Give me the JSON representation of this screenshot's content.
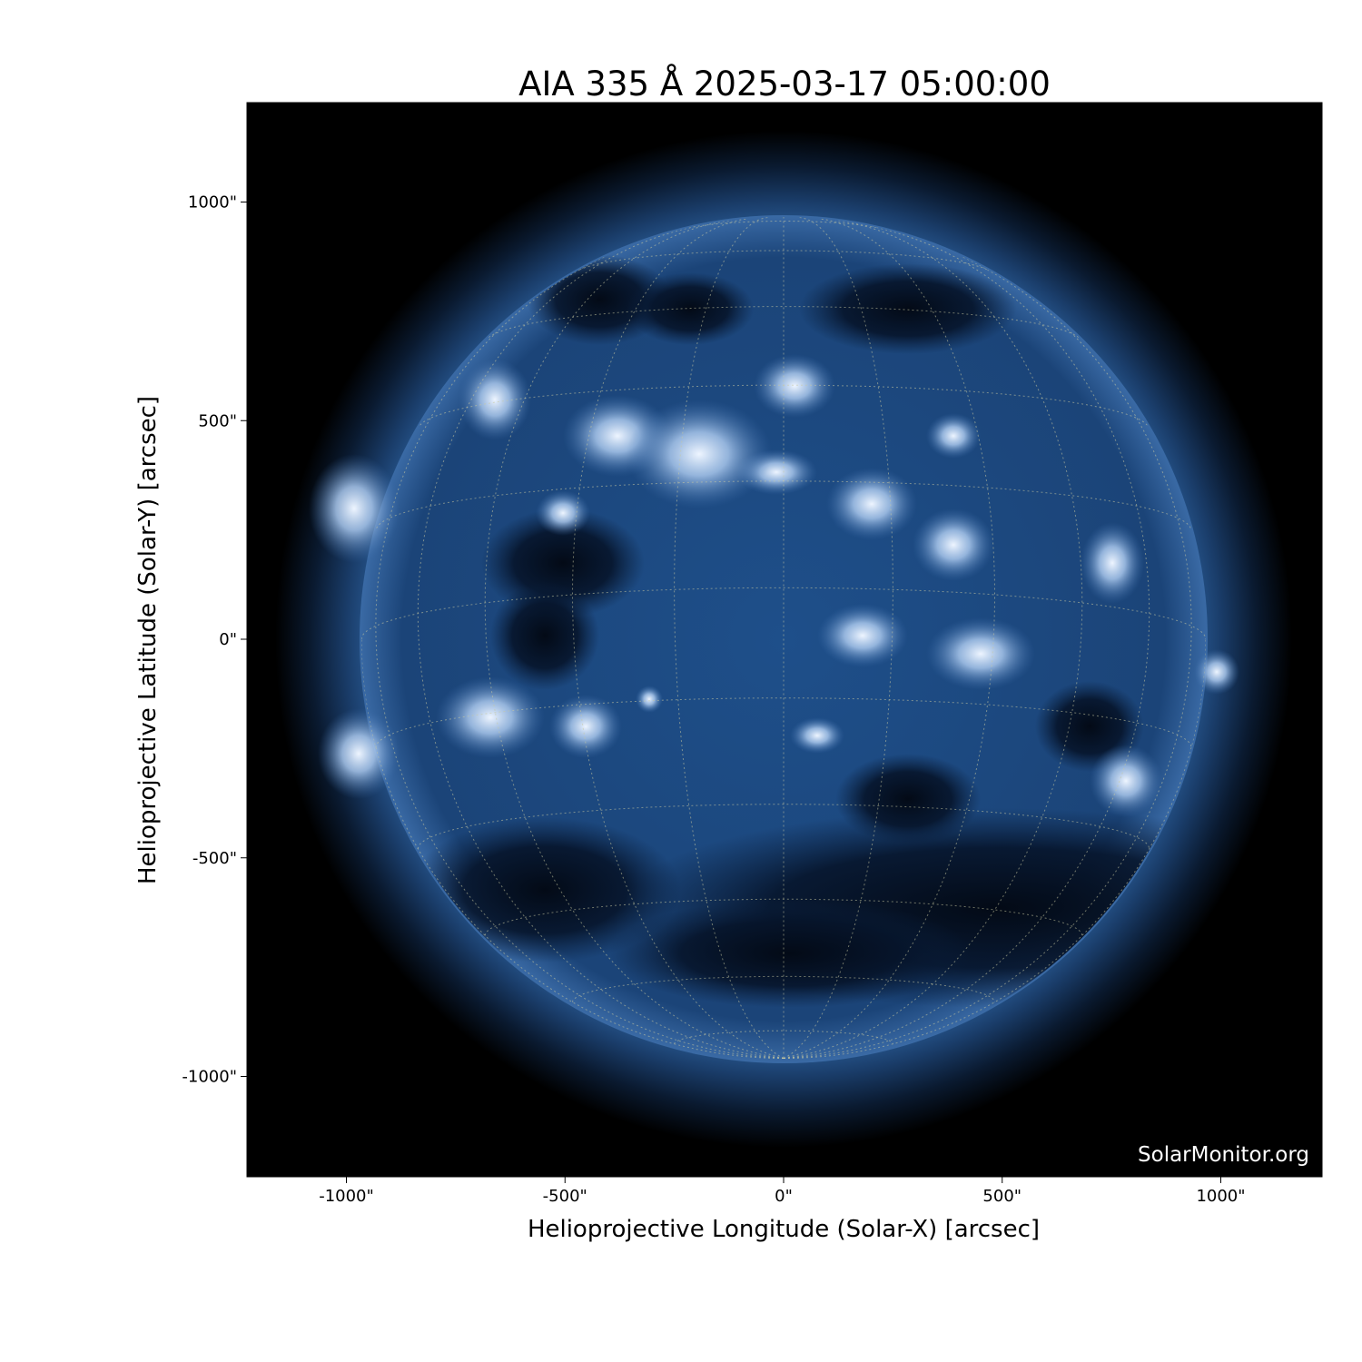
{
  "chart_data": {
    "type": "heatmap",
    "title": "AIA 335 Å 2025-03-17 05:00:00",
    "xlabel": "Helioprojective Longitude (Solar-X) [arcsec]",
    "ylabel": "Helioprojective Latitude (Solar-Y) [arcsec]",
    "xlim": [
      -1230,
      1230
    ],
    "ylim": [
      -1230,
      1230
    ],
    "xticks": [
      -1000,
      -500,
      0,
      500,
      1000
    ],
    "yticks": [
      1000,
      500,
      0,
      -500,
      -1000
    ],
    "xtick_labels": [
      "-1000\"",
      "-500\"",
      "0\"",
      "500\"",
      "1000\""
    ],
    "ytick_labels": [
      "1000\"",
      "500\"",
      "0\"",
      "-500\"",
      "-1000\""
    ],
    "colormap": "sdoaia335",
    "grid": true,
    "watermark": "SolarMonitor.org",
    "colors": {
      "background": "#000000",
      "disk": "#1f4f8a",
      "bright": "#e6f0ff"
    }
  }
}
